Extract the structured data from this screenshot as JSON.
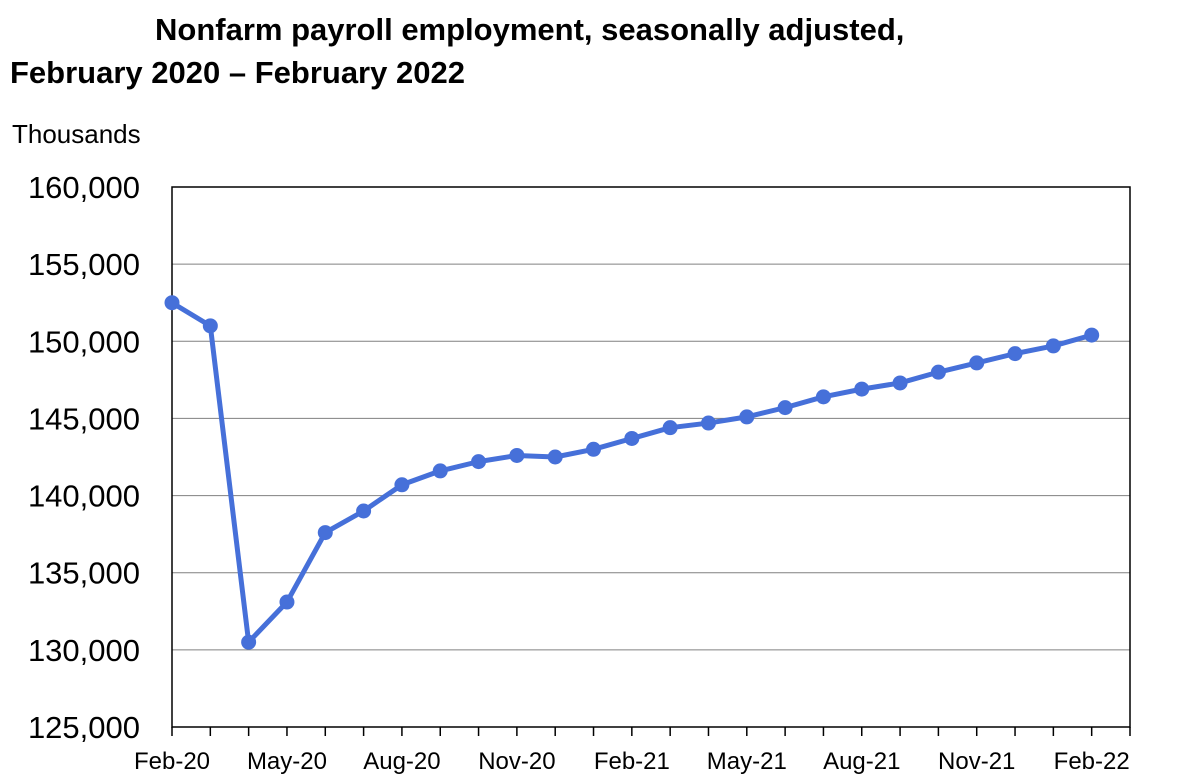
{
  "chart_data": {
    "type": "line",
    "title_line1": "Nonfarm payroll employment, seasonally adjusted,",
    "title_line2": "February 2020 – February 2022",
    "ylabel": "Thousands",
    "xlabel": "",
    "ylim": [
      125000,
      160000
    ],
    "yticks": [
      125000,
      130000,
      135000,
      140000,
      145000,
      150000,
      155000,
      160000
    ],
    "ytick_labels": [
      "125,000",
      "130,000",
      "135,000",
      "140,000",
      "145,000",
      "150,000",
      "155,000",
      "160,000"
    ],
    "x": [
      "Feb-20",
      "Mar-20",
      "Apr-20",
      "May-20",
      "Jun-20",
      "Jul-20",
      "Aug-20",
      "Sep-20",
      "Oct-20",
      "Nov-20",
      "Dec-20",
      "Jan-21",
      "Feb-21",
      "Mar-21",
      "Apr-21",
      "May-21",
      "Jun-21",
      "Jul-21",
      "Aug-21",
      "Sep-21",
      "Oct-21",
      "Nov-21",
      "Dec-21",
      "Jan-22",
      "Feb-22"
    ],
    "x_tick_labels": [
      "Feb-20",
      "May-20",
      "Aug-20",
      "Nov-20",
      "Feb-21",
      "May-21",
      "Aug-21",
      "Nov-21",
      "Feb-22"
    ],
    "series": [
      {
        "values": [
          152500,
          151000,
          130500,
          133100,
          137600,
          139000,
          140700,
          141600,
          142200,
          142600,
          142500,
          143000,
          143700,
          144400,
          144700,
          145100,
          145700,
          146400,
          146900,
          147300,
          148000,
          148600,
          149200,
          149700,
          150400
        ],
        "color": "#4670D9"
      }
    ],
    "grid": "horizontal",
    "legend": "none"
  }
}
